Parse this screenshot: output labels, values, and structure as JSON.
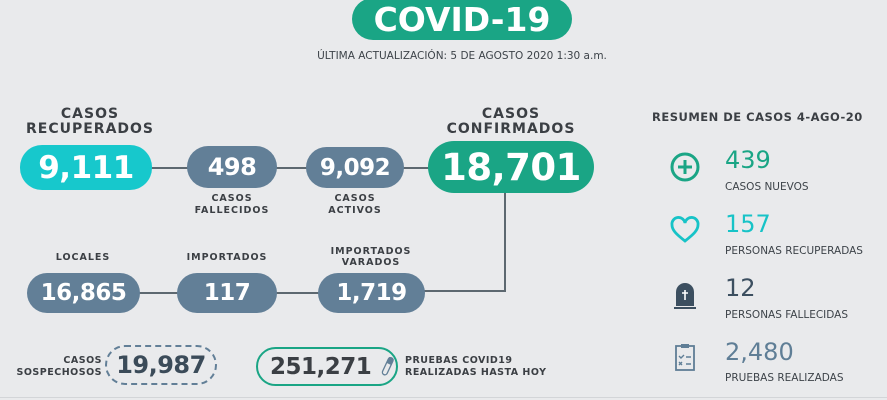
{
  "header": {
    "title": "COVID-19",
    "updated": "ÚLTIMA ACTUALIZACIÓN: 5 DE AGOSTO 2020 1:30 a.m."
  },
  "flow": {
    "recuperados": {
      "label1": "CASOS",
      "label2": "RECUPERADOS",
      "value": "9,111"
    },
    "fallecidos": {
      "label1": "CASOS",
      "label2": "FALLECIDOS",
      "value": "498"
    },
    "activos": {
      "label1": "CASOS",
      "label2": "ACTIVOS",
      "value": "9,092"
    },
    "confirmados": {
      "label1": "CASOS",
      "label2": "CONFIRMADOS",
      "value": "18,701"
    },
    "locales": {
      "label": "LOCALES",
      "value": "16,865"
    },
    "importados": {
      "label": "IMPORTADOS",
      "value": "117"
    },
    "varados": {
      "label1": "IMPORTADOS",
      "label2": "VARADOS",
      "value": "1,719"
    },
    "sospechosos": {
      "label1": "CASOS",
      "label2": "SOSPECHOSOS",
      "value": "19,987"
    },
    "pruebas": {
      "value": "251,271",
      "label1": "PRUEBAS COVID19",
      "label2": "REALIZADAS HASTA HOY",
      "icon": "test-tube-icon"
    }
  },
  "summary": {
    "title": "RESUMEN DE CASOS 4-AGO-20",
    "items": [
      {
        "icon": "plus-circle-icon",
        "value": "439",
        "label": "CASOS NUEVOS",
        "color": "#1aa585"
      },
      {
        "icon": "heart-icon",
        "value": "157",
        "label": "PERSONAS RECUPERADAS",
        "color": "#17c3c7"
      },
      {
        "icon": "tombstone-icon",
        "value": "12",
        "label": "PERSONAS FALLECIDAS",
        "color": "#3c4f60"
      },
      {
        "icon": "clipboard-icon",
        "value": "2,480",
        "label": "PRUEBAS REALIZADAS",
        "color": "#5f7e96"
      }
    ]
  },
  "colors": {
    "green": "#1aa585",
    "cyan": "#17c8cc",
    "slate": "#627f97",
    "background": "#e9eaec"
  }
}
